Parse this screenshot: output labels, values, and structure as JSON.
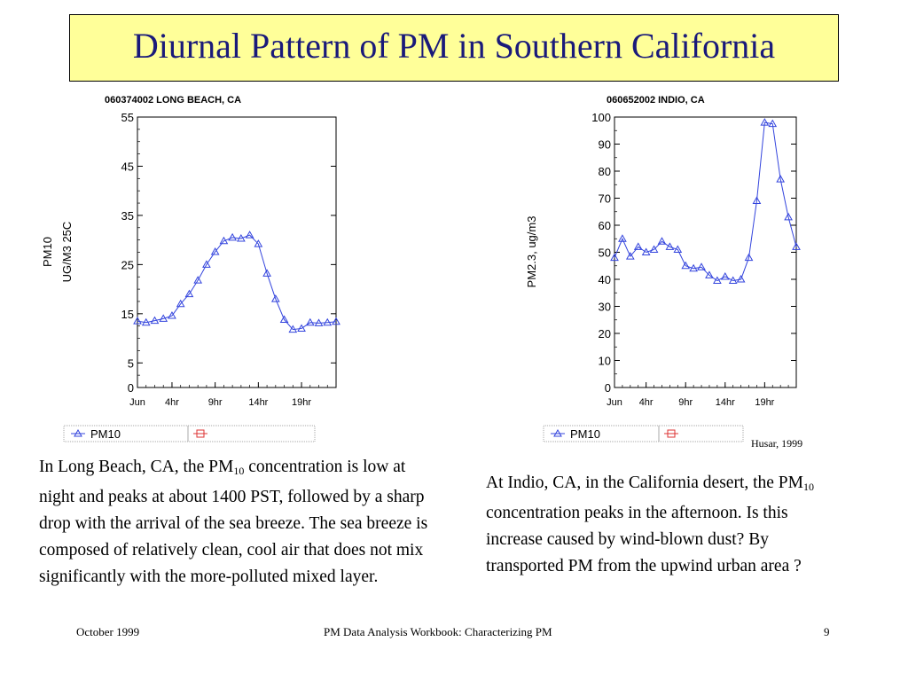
{
  "slide": {
    "title": "Diurnal Pattern of PM in Southern California",
    "credit": "Husar, 1999",
    "left_caption": {
      "pre": "In Long Beach, CA, the PM",
      "sub": "10",
      "post": " concentration is low at night and peaks at about 1400 PST, followed by a sharp drop with the arrival of the sea breeze. The sea breeze is composed of relatively clean, cool air that does not mix significantly with the more-polluted mixed layer."
    },
    "right_caption": {
      "pre": "At Indio, CA, in the California desert, the PM",
      "sub": "10",
      "post": " concentration peaks in the afternoon.  Is this increase caused by wind-blown dust? By transported PM from the upwind urban area ?"
    },
    "footer": {
      "left": "October 1999",
      "center": "PM Data Analysis Workbook: Characterizing PM",
      "page": "9"
    }
  },
  "chart_data": [
    {
      "type": "line",
      "title": "060374002 LONG BEACH, CA",
      "ylabel_lines": [
        "PM10",
        "UG/M3 25C"
      ],
      "x": [
        0,
        1,
        2,
        3,
        4,
        5,
        6,
        7,
        8,
        9,
        10,
        11,
        12,
        13,
        14,
        15,
        16,
        17,
        18,
        19,
        20,
        21,
        22,
        23
      ],
      "x_tick_values": [
        0,
        4,
        9,
        14,
        19
      ],
      "x_tick_labels": [
        "Jun",
        "4hr",
        "9hr",
        "14hr",
        "19hr"
      ],
      "ylim": [
        0,
        55
      ],
      "y_ticks": [
        0,
        5,
        15,
        25,
        35,
        45,
        55
      ],
      "series": [
        {
          "name": "PM10",
          "color": "#3344dd",
          "marker": "triangle",
          "values": [
            13.5,
            13.2,
            13.6,
            14,
            14.6,
            17,
            19,
            21.8,
            25,
            27.6,
            29.8,
            30.5,
            30.3,
            31,
            29.2,
            23.2,
            18,
            13.8,
            11.8,
            12,
            13.2,
            13.1,
            13.2,
            13.4
          ]
        }
      ],
      "legend": [
        "PM10",
        ""
      ],
      "grid": false
    },
    {
      "type": "line",
      "title": "060652002 INDIO, CA",
      "ylabel": "PM2.3, ug/m3",
      "x": [
        0,
        1,
        2,
        3,
        4,
        5,
        6,
        7,
        8,
        9,
        10,
        11,
        12,
        13,
        14,
        15,
        16,
        17,
        18,
        19,
        20,
        21,
        22,
        23
      ],
      "x_tick_values": [
        0,
        4,
        9,
        14,
        19
      ],
      "x_tick_labels": [
        "Jun",
        "4hr",
        "9hr",
        "14hr",
        "19hr"
      ],
      "ylim": [
        0,
        100
      ],
      "y_ticks": [
        0,
        10,
        20,
        30,
        40,
        50,
        60,
        70,
        80,
        90,
        100
      ],
      "series": [
        {
          "name": "PM10",
          "color": "#3344dd",
          "marker": "triangle",
          "values": [
            48,
            55,
            48.5,
            52,
            50,
            51,
            54,
            52,
            51,
            45,
            44,
            44.5,
            41.5,
            39.5,
            41,
            39.5,
            40,
            48,
            69,
            98,
            97.5,
            77,
            63,
            52
          ]
        }
      ],
      "legend": [
        "PM10",
        ""
      ],
      "grid": false
    }
  ]
}
